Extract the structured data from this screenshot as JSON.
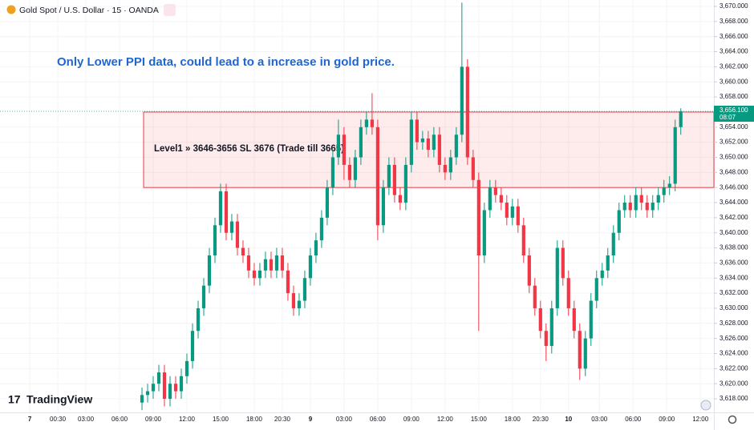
{
  "chart_data": {
    "type": "candlestick",
    "title": "Gold Spot / U.S. Dollar · 15 · OANDA",
    "annotation": "Only Lower PPI data, could lead to a increase in gold price.",
    "logo": "TradingView",
    "zone": {
      "from": 3646,
      "to": 3656,
      "label": "Level1 » 3646-3656 SL 3676 (Trade till 3665)",
      "color": "#f23645"
    },
    "last_price": {
      "value": 3656.1,
      "label": "3,656.100",
      "countdown": "08:07",
      "color": "#089981"
    },
    "up_color": "#089981",
    "down_color": "#f23645",
    "open": [
      3617.5,
      3618.5,
      3619,
      3620,
      3621.5,
      3618,
      3620,
      3619,
      3621,
      3623,
      3627,
      3630,
      3633,
      3637,
      3641,
      3645.5,
      3640,
      3641.5,
      3638,
      3637,
      3635,
      3634,
      3635,
      3636.5,
      3635,
      3637,
      3635,
      3632,
      3630,
      3631,
      3634,
      3637,
      3639,
      3642,
      3646,
      3650,
      3653,
      3649,
      3647,
      3650,
      3654,
      3655,
      3654,
      3641,
      3646,
      3649,
      3645,
      3644,
      3649,
      3655,
      3652,
      3652.5,
      3651,
      3653,
      3649,
      3648,
      3650,
      3653,
      3662,
      3650,
      3647,
      3637,
      3643,
      3646,
      3645,
      3644,
      3642,
      3643.5,
      3641,
      3637,
      3633,
      3630,
      3627,
      3625,
      3630,
      3638,
      3634,
      3630,
      3627,
      3622,
      3626,
      3631,
      3634,
      3635,
      3637,
      3640,
      3643,
      3644,
      3643,
      3645,
      3644,
      3643,
      3644,
      3645,
      3646,
      3646.5,
      3654
    ],
    "high": [
      3619.5,
      3620,
      3621,
      3622.5,
      3622.5,
      3621,
      3621,
      3622,
      3624,
      3628,
      3631,
      3634,
      3638,
      3642,
      3646.5,
      3646.5,
      3642.5,
      3642.5,
      3639,
      3638,
      3636,
      3636,
      3637.5,
      3637.5,
      3638,
      3638,
      3636,
      3633,
      3632,
      3635,
      3638,
      3640,
      3643,
      3647,
      3651,
      3655,
      3654,
      3650,
      3651,
      3655,
      3656,
      3658.5,
      3655,
      3647,
      3650,
      3650,
      3646,
      3650,
      3656,
      3656,
      3653.5,
      3653.5,
      3654,
      3654,
      3650,
      3651,
      3654,
      3670.5,
      3663,
      3651,
      3648,
      3644,
      3647,
      3647,
      3646,
      3645,
      3644.5,
      3644.5,
      3642,
      3638,
      3634,
      3631,
      3628,
      3631,
      3639,
      3639,
      3635,
      3631,
      3628,
      3627,
      3632,
      3635,
      3636,
      3638,
      3641,
      3644,
      3645,
      3645,
      3646,
      3646,
      3645,
      3645,
      3646,
      3647,
      3647.5,
      3655,
      3656.5
    ],
    "low": [
      3616.5,
      3617.5,
      3618,
      3619,
      3617,
      3617,
      3618,
      3618,
      3620,
      3622,
      3626,
      3629,
      3632,
      3636,
      3640,
      3639,
      3639,
      3637,
      3636,
      3634,
      3633,
      3633,
      3634,
      3634,
      3634,
      3634,
      3631,
      3629,
      3629,
      3630,
      3633,
      3636,
      3638,
      3641,
      3645,
      3649,
      3647,
      3646,
      3646,
      3649,
      3653,
      3653,
      3639,
      3640,
      3645,
      3644,
      3643,
      3643,
      3648,
      3651,
      3651,
      3650,
      3650,
      3648,
      3647,
      3647,
      3649,
      3652,
      3649,
      3646,
      3627,
      3636,
      3642,
      3644,
      3643,
      3641,
      3641,
      3640,
      3636,
      3632,
      3629,
      3626,
      3623,
      3624,
      3629,
      3633,
      3629,
      3626,
      3620.5,
      3621,
      3625,
      3630,
      3633,
      3634,
      3636,
      3639,
      3642,
      3642,
      3642,
      3643,
      3642,
      3642,
      3643,
      3644,
      3645,
      3645.5,
      3653
    ],
    "close": [
      3618.5,
      3619,
      3620,
      3621.5,
      3618,
      3620,
      3619,
      3621,
      3623,
      3627,
      3630,
      3633,
      3637,
      3641,
      3645.5,
      3640,
      3641.5,
      3638,
      3637,
      3635,
      3634,
      3635,
      3636.5,
      3635,
      3637,
      3635,
      3632,
      3630,
      3631,
      3634,
      3637,
      3639,
      3642,
      3646,
      3650,
      3653,
      3649,
      3647,
      3650,
      3654,
      3655,
      3654,
      3641,
      3646,
      3649,
      3645,
      3644,
      3649,
      3655,
      3652,
      3652.5,
      3651,
      3653,
      3649,
      3648,
      3650,
      3653,
      3662,
      3650,
      3647,
      3637,
      3643,
      3646,
      3645,
      3644,
      3642,
      3643.5,
      3641,
      3637,
      3633,
      3630,
      3627,
      3625,
      3630,
      3638,
      3634,
      3630,
      3627,
      3622,
      3626,
      3631,
      3634,
      3635,
      3637,
      3640,
      3643,
      3644,
      3643,
      3645,
      3644,
      3643,
      3644,
      3645,
      3646,
      3646.5,
      3654,
      3656.1
    ],
    "xlim": [
      -25.3,
      101.9
    ],
    "xticks": [
      {
        "value": -20,
        "label": "7"
      },
      {
        "value": -15,
        "label": "00:30"
      },
      {
        "value": -10,
        "label": "03:00"
      },
      {
        "value": -4,
        "label": "06:00"
      },
      {
        "value": 2,
        "label": "09:00"
      },
      {
        "value": 8,
        "label": "12:00"
      },
      {
        "value": 14,
        "label": "15:00"
      },
      {
        "value": 20,
        "label": "18:00"
      },
      {
        "value": 25,
        "label": "20:30"
      },
      {
        "value": 30,
        "label": "9"
      },
      {
        "value": 36,
        "label": "03:00"
      },
      {
        "value": 42,
        "label": "06:00"
      },
      {
        "value": 48,
        "label": "09:00"
      },
      {
        "value": 54,
        "label": "12:00"
      },
      {
        "value": 60,
        "label": "15:00"
      },
      {
        "value": 66,
        "label": "18:00"
      },
      {
        "value": 71,
        "label": "20:30"
      },
      {
        "value": 76,
        "label": "10"
      },
      {
        "value": 81.5,
        "label": "03:00"
      },
      {
        "value": 87.5,
        "label": "06:00"
      },
      {
        "value": 93.5,
        "label": "09:00"
      },
      {
        "value": 99.5,
        "label": "12:00"
      }
    ],
    "ylim": [
      3616.2,
      3670.85
    ],
    "yticks": [
      {
        "value": 3618,
        "label": "3,618.000"
      },
      {
        "value": 3620,
        "label": "3,620.000"
      },
      {
        "value": 3622,
        "label": "3,622.000"
      },
      {
        "value": 3624,
        "label": "3,624.000"
      },
      {
        "value": 3626,
        "label": "3,626.000"
      },
      {
        "value": 3628,
        "label": "3,628.000"
      },
      {
        "value": 3630,
        "label": "3,630.000"
      },
      {
        "value": 3632,
        "label": "3,632.000"
      },
      {
        "value": 3634,
        "label": "3,634.000"
      },
      {
        "value": 3636,
        "label": "3,636.000"
      },
      {
        "value": 3638,
        "label": "3,638.000"
      },
      {
        "value": 3640,
        "label": "3,640.000"
      },
      {
        "value": 3642,
        "label": "3,642.000"
      },
      {
        "value": 3644,
        "label": "3,644.000"
      },
      {
        "value": 3646,
        "label": "3,646.000"
      },
      {
        "value": 3648,
        "label": "3,648.000"
      },
      {
        "value": 3650,
        "label": "3,650.000"
      },
      {
        "value": 3652,
        "label": "3,652.000"
      },
      {
        "value": 3654,
        "label": "3,654.000"
      },
      {
        "value": 3658,
        "label": "3,658.000"
      },
      {
        "value": 3660,
        "label": "3,660.000"
      },
      {
        "value": 3662,
        "label": "3,662.000"
      },
      {
        "value": 3664,
        "label": "3,664.000"
      },
      {
        "value": 3666,
        "label": "3,666.000"
      },
      {
        "value": 3668,
        "label": "3,668.000"
      },
      {
        "value": 3670,
        "label": "3,670.000"
      }
    ]
  }
}
